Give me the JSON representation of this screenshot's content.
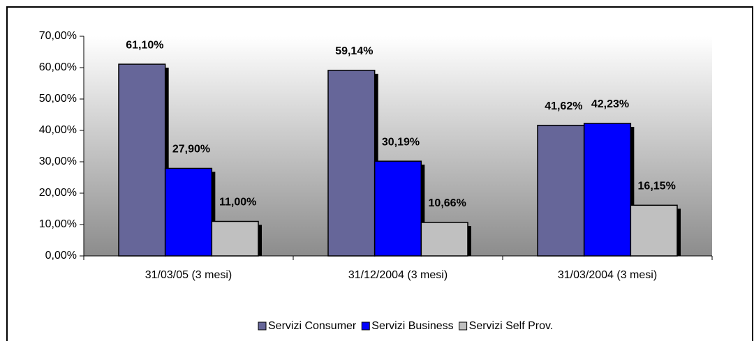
{
  "chart_data": {
    "type": "bar",
    "categories": [
      "31/03/05 (3 mesi)",
      "31/12/2004 (3 mesi)",
      "31/03/2004 (3 mesi)"
    ],
    "series": [
      {
        "name": "Servizi Consumer",
        "color": "#666699",
        "values": [
          61.1,
          59.14,
          41.62
        ],
        "value_labels": [
          "61,10%",
          "59,14%",
          "41,62%"
        ]
      },
      {
        "name": "Servizi Business",
        "color": "#0000ff",
        "values": [
          27.9,
          30.19,
          42.23
        ],
        "value_labels": [
          "27,90%",
          "30,19%",
          "42,23%"
        ]
      },
      {
        "name": "Servizi Self Prov.",
        "color": "#c0c0c0",
        "values": [
          11.0,
          10.66,
          16.15
        ],
        "value_labels": [
          "11,00%",
          "10,66%",
          "16,15%"
        ]
      }
    ],
    "ylim": [
      0,
      70
    ],
    "yticks": [
      {
        "value": 0,
        "label": "0,00%"
      },
      {
        "value": 10,
        "label": "10,00%"
      },
      {
        "value": 20,
        "label": "20,00%"
      },
      {
        "value": 30,
        "label": "30,00%"
      },
      {
        "value": 40,
        "label": "40,00%"
      },
      {
        "value": 50,
        "label": "50,00%"
      },
      {
        "value": 60,
        "label": "60,00%"
      },
      {
        "value": 70,
        "label": "70,00%"
      }
    ],
    "legend": "bottom"
  }
}
